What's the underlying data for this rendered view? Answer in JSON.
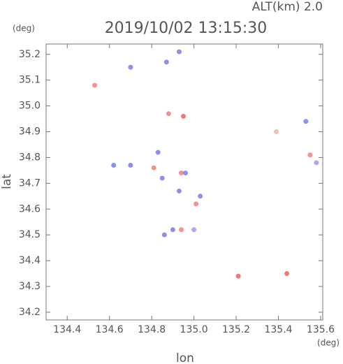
{
  "chart_data": {
    "type": "scatter",
    "title": "2019/10/02 13:15:30",
    "subtitle": "ALT(km) 2.0",
    "x_label": "lon",
    "y_label": "lat",
    "x_unit": "(deg)",
    "y_unit": "(deg)",
    "xlim": [
      134.3,
      135.61
    ],
    "ylim": [
      34.17,
      35.24
    ],
    "xticks": [
      134.4,
      134.6,
      134.8,
      {
        "value": 135,
        "label": "135.0"
      },
      135.2,
      135.4,
      135.6
    ],
    "yticks": [
      34.2,
      34.3,
      34.4,
      34.5,
      34.6,
      34.7,
      34.8,
      34.9,
      {
        "value": 35,
        "label": "35.0"
      },
      35.1,
      35.2
    ],
    "x": [
      134.53,
      134.7,
      134.87,
      134.93,
      134.95,
      134.88,
      134.62,
      134.7,
      134.81,
      134.83,
      134.85,
      134.94,
      134.96,
      134.93,
      135.01,
      135.03,
      134.9,
      134.94,
      134.86,
      135.0,
      135.21,
      135.44,
      135.39,
      135.53,
      135.55,
      135.58
    ],
    "y": [
      35.08,
      35.15,
      35.17,
      35.21,
      34.96,
      34.97,
      34.77,
      34.77,
      34.76,
      34.82,
      34.72,
      34.74,
      34.74,
      34.67,
      34.62,
      34.65,
      34.52,
      34.52,
      34.5,
      34.52,
      34.34,
      34.35,
      34.9,
      34.94,
      34.81,
      34.78
    ],
    "colors": [
      "#f08080",
      "#7a7ae8",
      "#7a7ae8",
      "#7a7ae8",
      "#f06060",
      "#f08080",
      "#7a7ae8",
      "#7a7ae8",
      "#f08080",
      "#7a7ae8",
      "#7a7ae8",
      "#f08080",
      "#7a7ae8",
      "#7a7ae8",
      "#f08080",
      "#7a7ae8",
      "#7a7ae8",
      "#f08080",
      "#7a7ae8",
      "#9a9af0",
      "#f06060",
      "#f06060",
      "#f4b0b0",
      "#7a7ae8",
      "#f08080",
      "#9a9af0"
    ]
  }
}
